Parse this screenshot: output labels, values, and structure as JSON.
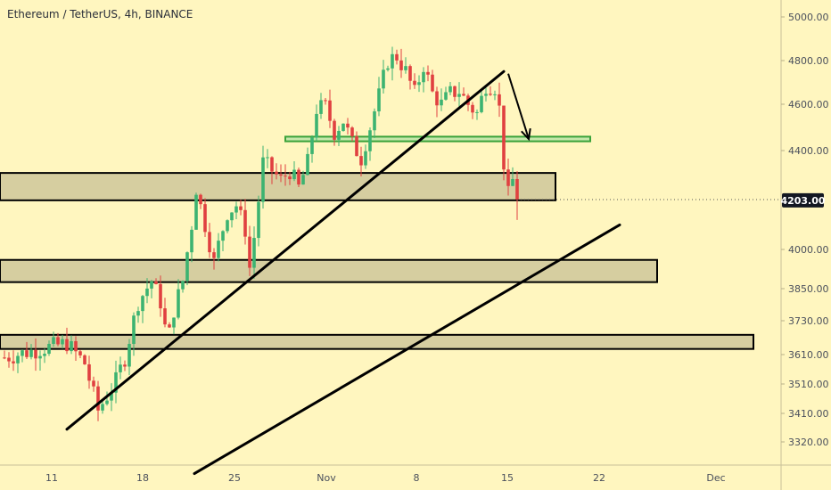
{
  "header": {
    "title": "Ethereum / TetherUS, 4h, BINANCE"
  },
  "colors": {
    "background": "#fff6bf",
    "up_candle": "#3cb371",
    "down_candle": "#e04040",
    "zone_fill": "#cfc79a",
    "green_zone_fill": "#b7e3a6",
    "green_zone_stroke": "#3aa23a",
    "badge": "#131722"
  },
  "chart_data": {
    "type": "candlestick",
    "symbol": "Ethereum / TetherUS",
    "interval": "4h",
    "exchange": "BINANCE",
    "price_scale": "log",
    "y_ticks": [
      5000,
      4800,
      4600,
      4400,
      4200,
      4000,
      3850,
      3730,
      3610,
      3510,
      3410,
      3320
    ],
    "y_tick_labels": [
      "5000.00",
      "4800.00",
      "4600.00",
      "4400.00",
      "4203.00",
      "4000.00",
      "3850.00",
      "3730.00",
      "3610.00",
      "3510.00",
      "3410.00",
      "3320.00"
    ],
    "x_tick_labels": [
      "11",
      "18",
      "25",
      "Nov",
      "8",
      "15",
      "22",
      "Dec"
    ],
    "last_price": "4203.00",
    "price_path": [
      [
        0,
        3600
      ],
      [
        4,
        3630
      ],
      [
        7,
        3650
      ],
      [
        9,
        3580
      ],
      [
        10.5,
        3420
      ],
      [
        11.5,
        3470
      ],
      [
        12.5,
        3520
      ],
      [
        13.5,
        3600
      ],
      [
        15,
        3800
      ],
      [
        16.5,
        3880
      ],
      [
        17.5,
        3800
      ],
      [
        18.3,
        3650
      ],
      [
        19,
        3770
      ],
      [
        20,
        3880
      ],
      [
        21,
        4100
      ],
      [
        21.5,
        4250
      ],
      [
        22.5,
        4100
      ],
      [
        23.5,
        3950
      ],
      [
        24,
        4020
      ],
      [
        25,
        4150
      ],
      [
        26,
        4180
      ],
      [
        27,
        4080
      ],
      [
        27.5,
        3930
      ],
      [
        28,
        4050
      ],
      [
        29,
        4350
      ],
      [
        30,
        4320
      ],
      [
        31,
        4280
      ],
      [
        32,
        4320
      ],
      [
        33,
        4250
      ],
      [
        34,
        4350
      ],
      [
        35,
        4580
      ],
      [
        36,
        4590
      ],
      [
        37,
        4480
      ],
      [
        38,
        4530
      ],
      [
        39,
        4430
      ],
      [
        40,
        4370
      ],
      [
        41,
        4500
      ],
      [
        42,
        4640
      ],
      [
        43,
        4800
      ],
      [
        44,
        4820
      ],
      [
        45,
        4750
      ],
      [
        46,
        4650
      ],
      [
        47,
        4780
      ],
      [
        48,
        4650
      ],
      [
        49,
        4600
      ],
      [
        50,
        4650
      ],
      [
        51,
        4660
      ],
      [
        52,
        4600
      ],
      [
        52.5,
        4580
      ],
      [
        53,
        4560
      ],
      [
        54,
        4690
      ],
      [
        55,
        4680
      ],
      [
        55.5,
        4580
      ],
      [
        56,
        4350
      ],
      [
        56.5,
        4220
      ],
      [
        57,
        4280
      ],
      [
        57.5,
        4200
      ]
    ],
    "annotations": {
      "rectangle_zones": [
        {
          "name": "zone-upper",
          "y_from": 4200,
          "y_to": 4310,
          "x_from": 0,
          "x_to": 61.8
        },
        {
          "name": "zone-middle",
          "y_from": 3875,
          "y_to": 3960,
          "x_from": 0,
          "x_to": 73.2
        },
        {
          "name": "zone-lower",
          "y_from": 3630,
          "y_to": 3680,
          "x_from": 0,
          "x_to": 84
        }
      ],
      "highlight_zone": {
        "y_from": 4440,
        "y_to": 4460,
        "x_from": 31.5,
        "x_to": 65.7
      },
      "trendlines": [
        {
          "name": "rising-trendline-1",
          "from": [
            7,
            3360
          ],
          "to": [
            56,
            4750
          ]
        },
        {
          "name": "rising-trendline-2",
          "from": [
            21.3,
            3220
          ],
          "to": [
            69,
            4100
          ]
        }
      ],
      "arrow": {
        "from": [
          56.5,
          4740
        ],
        "to": [
          58.8,
          4450
        ]
      },
      "last_price_dotted_line": true
    }
  }
}
